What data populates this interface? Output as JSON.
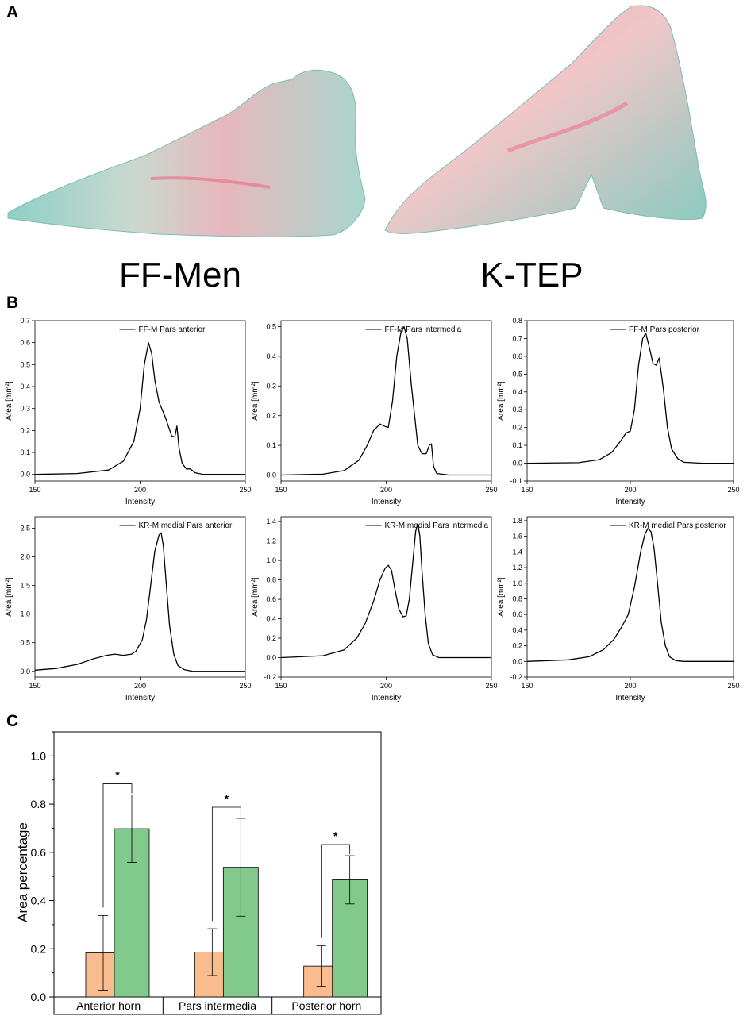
{
  "panels": {
    "a": "A",
    "b": "B",
    "c": "C"
  },
  "samples": [
    "FF-Men",
    "K-TEP"
  ],
  "colors": {
    "orange": "#f9bc8e",
    "green": "#82c98c",
    "pink": "#ef8fa2",
    "teal": "#6fc1b6"
  },
  "chart_data": [
    {
      "type": "line",
      "panel": "B",
      "legend": "FF-M Pars anterior",
      "xlabel": "Intensity",
      "ylabel": "Area [mm²]",
      "xlim": [
        150,
        250
      ],
      "xticks": [
        150,
        200,
        250
      ],
      "ylim": [
        -0.03,
        0.7
      ],
      "yticks": [
        "0.0",
        "0.1",
        "0.2",
        "0.3",
        "0.4",
        "0.5",
        "0.6",
        "0.7"
      ],
      "x": [
        150,
        170,
        185,
        192,
        197,
        200,
        202,
        204,
        205.5,
        207,
        209,
        212,
        215,
        216.5,
        217.5,
        218.5,
        220,
        222,
        224,
        226,
        230,
        250
      ],
      "y": [
        0.0,
        0.004,
        0.02,
        0.06,
        0.15,
        0.3,
        0.5,
        0.6,
        0.55,
        0.43,
        0.33,
        0.26,
        0.175,
        0.17,
        0.22,
        0.12,
        0.05,
        0.025,
        0.025,
        0.008,
        0.0,
        0.0
      ]
    },
    {
      "type": "line",
      "panel": "B",
      "legend": "FF-M Pars intermedia",
      "xlabel": "Intensity",
      "ylabel": "Area [mm²]",
      "xlim": [
        150,
        250
      ],
      "xticks": [
        150,
        200,
        250
      ],
      "ylim": [
        -0.02,
        0.52
      ],
      "yticks": [
        "0.0",
        "0.1",
        "0.2",
        "0.3",
        "0.4",
        "0.5"
      ],
      "x": [
        150,
        170,
        180,
        187,
        191,
        194,
        197,
        199,
        201,
        203,
        205,
        207,
        208.5,
        210,
        212,
        215,
        217,
        219,
        220.5,
        221.5,
        222.5,
        224,
        230,
        250
      ],
      "y": [
        0.0,
        0.003,
        0.015,
        0.05,
        0.1,
        0.15,
        0.172,
        0.165,
        0.16,
        0.25,
        0.4,
        0.48,
        0.5,
        0.46,
        0.3,
        0.1,
        0.072,
        0.072,
        0.1,
        0.105,
        0.03,
        0.005,
        0.0,
        0.0
      ]
    },
    {
      "type": "line",
      "panel": "B",
      "legend": "FF-M Pars posterior",
      "xlabel": "Intensity",
      "ylabel": "Area [mm²]",
      "xlim": [
        150,
        250
      ],
      "xticks": [
        150,
        200,
        250
      ],
      "ylim": [
        -0.1,
        0.8
      ],
      "yticks": [
        "-0.1",
        "0.0",
        "0.1",
        "0.2",
        "0.3",
        "0.4",
        "0.5",
        "0.6",
        "0.7",
        "0.8"
      ],
      "x": [
        150,
        175,
        185,
        191,
        195,
        198,
        200,
        202,
        204,
        206,
        207.5,
        209,
        211,
        212.5,
        214,
        216,
        218,
        220,
        223,
        226,
        235,
        250
      ],
      "y": [
        0.0,
        0.003,
        0.02,
        0.06,
        0.12,
        0.17,
        0.18,
        0.3,
        0.55,
        0.7,
        0.73,
        0.66,
        0.56,
        0.55,
        0.59,
        0.42,
        0.2,
        0.08,
        0.025,
        0.005,
        0.0,
        0.0
      ]
    },
    {
      "type": "line",
      "panel": "B",
      "legend": "KR-M medial Pars anterior",
      "xlabel": "Intensity",
      "ylabel": "Area [mm²]",
      "xlim": [
        150,
        250
      ],
      "xticks": [
        150,
        200,
        250
      ],
      "ylim": [
        -0.1,
        2.7
      ],
      "yticks": [
        "0.0",
        "0.5",
        "1.0",
        "1.5",
        "2.0",
        "2.5"
      ],
      "x": [
        150,
        160,
        170,
        178,
        184,
        188,
        192,
        196,
        198,
        201,
        203,
        205,
        207,
        209,
        210,
        211,
        212.5,
        214,
        216,
        218,
        221,
        225,
        235,
        250
      ],
      "y": [
        0.02,
        0.05,
        0.12,
        0.22,
        0.28,
        0.3,
        0.28,
        0.3,
        0.35,
        0.55,
        0.9,
        1.5,
        2.1,
        2.38,
        2.42,
        2.2,
        1.5,
        0.8,
        0.3,
        0.1,
        0.03,
        0.0,
        0.0,
        0.0
      ]
    },
    {
      "type": "line",
      "panel": "B",
      "legend": "KR-M medial Pars intermedia",
      "xlabel": "Intensity",
      "ylabel": "Area [mm²]",
      "xlim": [
        150,
        250
      ],
      "xticks": [
        150,
        200,
        250
      ],
      "ylim": [
        -0.2,
        1.45
      ],
      "yticks": [
        "-0.2",
        "0.0",
        "0.2",
        "0.4",
        "0.6",
        "0.8",
        "1.0",
        "1.2",
        "1.4"
      ],
      "x": [
        150,
        170,
        180,
        186,
        190,
        194,
        197,
        199.5,
        201,
        202.5,
        204,
        206,
        208,
        209.5,
        211,
        212.5,
        214,
        215,
        216,
        217,
        218.5,
        220,
        222,
        225,
        235,
        250
      ],
      "y": [
        0.0,
        0.02,
        0.08,
        0.2,
        0.35,
        0.58,
        0.8,
        0.92,
        0.95,
        0.9,
        0.72,
        0.5,
        0.42,
        0.43,
        0.6,
        0.95,
        1.3,
        1.38,
        1.25,
        0.9,
        0.45,
        0.15,
        0.03,
        0.0,
        0.0,
        0.0
      ]
    },
    {
      "type": "line",
      "panel": "B",
      "legend": "KR-M medial Pars posterior",
      "xlabel": "Intensity",
      "ylabel": "Area [mm²]",
      "xlim": [
        150,
        250
      ],
      "xticks": [
        150,
        200,
        250
      ],
      "ylim": [
        -0.2,
        1.85
      ],
      "yticks": [
        "-0.2",
        "0.0",
        "0.2",
        "0.4",
        "0.6",
        "0.8",
        "1.0",
        "1.2",
        "1.4",
        "1.6",
        "1.8"
      ],
      "x": [
        150,
        170,
        180,
        187,
        192,
        196,
        199,
        202,
        205,
        207,
        208.5,
        210,
        211.5,
        213,
        215,
        217,
        219,
        222,
        226,
        235,
        250
      ],
      "y": [
        0.0,
        0.02,
        0.06,
        0.15,
        0.28,
        0.45,
        0.6,
        0.95,
        1.4,
        1.62,
        1.7,
        1.66,
        1.45,
        1.05,
        0.5,
        0.2,
        0.06,
        0.01,
        0.0,
        0.0,
        0.0
      ]
    },
    {
      "type": "bar",
      "panel": "C",
      "ylabel": "Area percentage",
      "ylim": [
        0,
        1.1
      ],
      "yticks": [
        "0.0",
        "0.2",
        "0.4",
        "0.6",
        "0.8",
        "1.0"
      ],
      "categories": [
        "Anterior horn",
        "Pars intermedia",
        "Posterior horn"
      ],
      "series": [
        {
          "name": "FF-Men",
          "color": "#f9bc8e",
          "values": [
            0.183,
            0.186,
            0.128
          ],
          "errors": [
            0.155,
            0.097,
            0.084
          ]
        },
        {
          "name": "K-TEP",
          "color": "#82c98c",
          "values": [
            0.698,
            0.538,
            0.486
          ],
          "errors": [
            0.14,
            0.203,
            0.1
          ]
        }
      ],
      "significance": [
        "*",
        "*",
        "*"
      ]
    }
  ]
}
